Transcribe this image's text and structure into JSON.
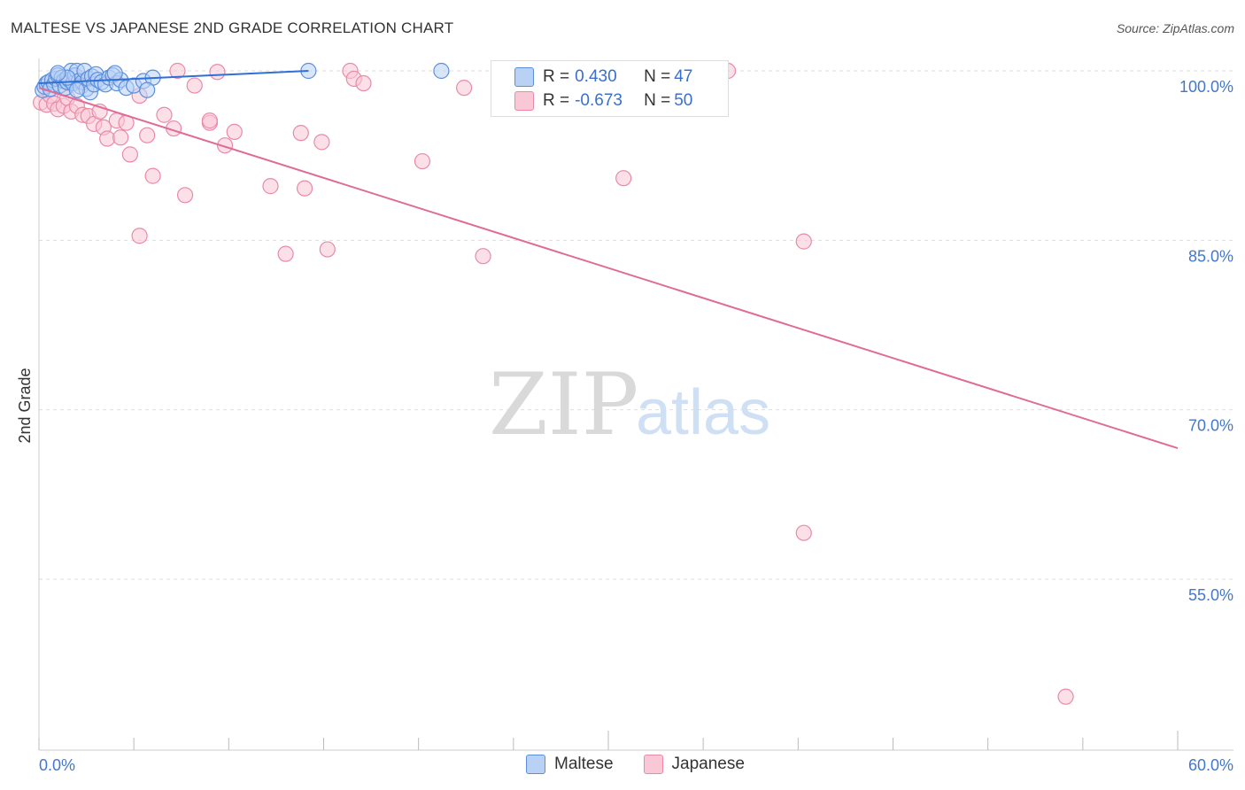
{
  "header": {
    "title": "MALTESE VS JAPANESE 2ND GRADE CORRELATION CHART",
    "source": "Source: ZipAtlas.com"
  },
  "watermark": {
    "zip": "ZIP",
    "atlas": "atlas"
  },
  "legend": {
    "rows": [
      {
        "r_label": "R = ",
        "r_value": "0.430",
        "n_label": "N = ",
        "n_value": "47",
        "color": "#8ab4ef"
      },
      {
        "r_label": "R = ",
        "r_value": "-0.673",
        "n_label": "N = ",
        "n_value": "50",
        "color": "#f4a6c0"
      }
    ]
  },
  "colors": {
    "maltese_fill": "#b9d1f5",
    "maltese_stroke": "#5b8fdc",
    "maltese_line": "#2f6fd6",
    "japanese_fill": "#f9c7d6",
    "japanese_stroke": "#e98aa9",
    "japanese_line": "#e06b96",
    "grid": "#dddddd",
    "tick_text": "#4477cc"
  },
  "chart_data": {
    "type": "scatter",
    "title": "MALTESE VS JAPANESE 2ND GRADE CORRELATION CHART",
    "xlabel": "",
    "ylabel": "2nd Grade",
    "xlim": [
      0,
      60
    ],
    "ylim": [
      40,
      102
    ],
    "x_tick_labels": [
      "0.0%",
      "60.0%"
    ],
    "y_ticks": [
      100,
      85,
      70,
      55
    ],
    "y_tick_labels": [
      "100.0%",
      "85.0%",
      "70.0%",
      "55.0%"
    ],
    "grid": true,
    "legend_position": "bottom-center",
    "series": [
      {
        "name": "Maltese",
        "r": 0.43,
        "n": 47,
        "trend": {
          "x": [
            0,
            14.2
          ],
          "y": [
            98.9,
            100.0
          ]
        },
        "points": [
          [
            0.2,
            98.3
          ],
          [
            0.3,
            98.6
          ],
          [
            0.4,
            98.9
          ],
          [
            0.5,
            99.0
          ],
          [
            0.6,
            98.4
          ],
          [
            0.7,
            99.2
          ],
          [
            0.8,
            98.8
          ],
          [
            0.9,
            99.3
          ],
          [
            1.0,
            99.6
          ],
          [
            1.1,
            98.7
          ],
          [
            1.2,
            99.4
          ],
          [
            1.3,
            99.1
          ],
          [
            1.4,
            98.5
          ],
          [
            1.5,
            99.0
          ],
          [
            1.6,
            99.2
          ],
          [
            1.7,
            100.0
          ],
          [
            1.8,
            98.9
          ],
          [
            1.9,
            99.6
          ],
          [
            2.0,
            100.0
          ],
          [
            2.1,
            99.1
          ],
          [
            2.2,
            98.6
          ],
          [
            2.3,
            99.0
          ],
          [
            2.4,
            100.0
          ],
          [
            2.5,
            98.4
          ],
          [
            2.6,
            99.3
          ],
          [
            2.7,
            98.1
          ],
          [
            2.8,
            99.5
          ],
          [
            2.9,
            98.8
          ],
          [
            3.0,
            99.7
          ],
          [
            3.1,
            99.2
          ],
          [
            3.3,
            99.0
          ],
          [
            3.5,
            98.8
          ],
          [
            3.7,
            99.4
          ],
          [
            3.9,
            99.6
          ],
          [
            4.1,
            98.9
          ],
          [
            4.3,
            99.2
          ],
          [
            4.6,
            98.5
          ],
          [
            5.0,
            98.7
          ],
          [
            5.5,
            99.1
          ],
          [
            6.0,
            99.4
          ],
          [
            1.5,
            99.4
          ],
          [
            2.0,
            98.3
          ],
          [
            4.0,
            99.8
          ],
          [
            1.0,
            99.8
          ],
          [
            14.2,
            100.0
          ],
          [
            21.2,
            100.0
          ],
          [
            5.7,
            98.3
          ]
        ]
      },
      {
        "name": "Japanese",
        "r": -0.673,
        "n": 50,
        "trend": {
          "x": [
            0,
            60
          ],
          "y": [
            98.5,
            66.6
          ]
        },
        "points": [
          [
            0.1,
            97.2
          ],
          [
            0.4,
            97.0
          ],
          [
            0.6,
            97.8
          ],
          [
            0.8,
            97.1
          ],
          [
            1.0,
            96.6
          ],
          [
            1.3,
            96.9
          ],
          [
            1.5,
            97.6
          ],
          [
            1.7,
            96.4
          ],
          [
            2.0,
            96.9
          ],
          [
            2.3,
            96.1
          ],
          [
            2.6,
            96.0
          ],
          [
            2.9,
            95.3
          ],
          [
            3.2,
            96.4
          ],
          [
            3.4,
            95.0
          ],
          [
            3.6,
            94.0
          ],
          [
            4.1,
            95.6
          ],
          [
            4.3,
            94.1
          ],
          [
            4.6,
            95.4
          ],
          [
            4.8,
            92.6
          ],
          [
            5.3,
            97.8
          ],
          [
            5.7,
            94.3
          ],
          [
            6.0,
            90.7
          ],
          [
            6.6,
            96.1
          ],
          [
            7.1,
            94.9
          ],
          [
            7.7,
            89.0
          ],
          [
            8.2,
            98.7
          ],
          [
            9.0,
            95.4
          ],
          [
            9.0,
            95.6
          ],
          [
            9.4,
            99.9
          ],
          [
            9.8,
            93.4
          ],
          [
            10.3,
            94.6
          ],
          [
            12.2,
            89.8
          ],
          [
            13.0,
            83.8
          ],
          [
            13.8,
            94.5
          ],
          [
            14.0,
            89.6
          ],
          [
            14.9,
            93.7
          ],
          [
            15.2,
            84.2
          ],
          [
            16.4,
            100.0
          ],
          [
            16.6,
            99.3
          ],
          [
            17.1,
            98.9
          ],
          [
            20.2,
            92.0
          ],
          [
            22.4,
            98.5
          ],
          [
            23.4,
            83.6
          ],
          [
            30.8,
            90.5
          ],
          [
            36.3,
            100.0
          ],
          [
            40.3,
            84.9
          ],
          [
            40.3,
            59.1
          ],
          [
            54.1,
            44.6
          ],
          [
            5.3,
            85.4
          ],
          [
            7.3,
            100.0
          ]
        ]
      }
    ]
  }
}
